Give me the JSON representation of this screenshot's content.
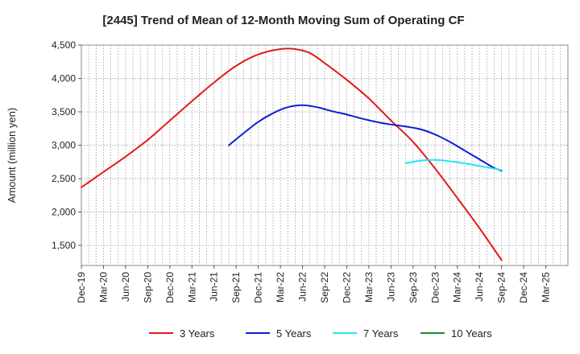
{
  "chart_data": {
    "type": "line",
    "title": "[2445]  Trend of Mean of 12-Month Moving Sum of Operating CF",
    "xlabel": "",
    "ylabel": "Amount (million yen)",
    "ylim": [
      1200,
      4500
    ],
    "yticks": [
      1500,
      2000,
      2500,
      3000,
      3500,
      4000,
      4500
    ],
    "ytick_labels": [
      "1,500",
      "2,000",
      "2,500",
      "3,000",
      "3,500",
      "4,000",
      "4,500"
    ],
    "x_range": [
      0,
      66
    ],
    "x_ticks": [
      {
        "label": "Dec-19",
        "x": 0
      },
      {
        "label": "Mar-20",
        "x": 3
      },
      {
        "label": "Jun-20",
        "x": 6
      },
      {
        "label": "Sep-20",
        "x": 9
      },
      {
        "label": "Dec-20",
        "x": 12
      },
      {
        "label": "Mar-21",
        "x": 15
      },
      {
        "label": "Jun-21",
        "x": 18
      },
      {
        "label": "Sep-21",
        "x": 21
      },
      {
        "label": "Dec-21",
        "x": 24
      },
      {
        "label": "Mar-22",
        "x": 27
      },
      {
        "label": "Jun-22",
        "x": 30
      },
      {
        "label": "Sep-22",
        "x": 33
      },
      {
        "label": "Dec-22",
        "x": 36
      },
      {
        "label": "Mar-23",
        "x": 39
      },
      {
        "label": "Jun-23",
        "x": 42
      },
      {
        "label": "Sep-23",
        "x": 45
      },
      {
        "label": "Dec-23",
        "x": 48
      },
      {
        "label": "Mar-24",
        "x": 51
      },
      {
        "label": "Jun-24",
        "x": 54
      },
      {
        "label": "Sep-24",
        "x": 57
      },
      {
        "label": "Dec-24",
        "x": 60
      },
      {
        "label": "Mar-25",
        "x": 63
      }
    ],
    "grid": true,
    "legend_position": "bottom",
    "series": [
      {
        "name": "3 Years",
        "color": "#e31a1c",
        "points": [
          [
            0,
            2370
          ],
          [
            3,
            2600
          ],
          [
            6,
            2830
          ],
          [
            9,
            3080
          ],
          [
            12,
            3370
          ],
          [
            15,
            3660
          ],
          [
            18,
            3940
          ],
          [
            21,
            4190
          ],
          [
            24,
            4360
          ],
          [
            27,
            4440
          ],
          [
            29,
            4440
          ],
          [
            31,
            4380
          ],
          [
            33,
            4230
          ],
          [
            36,
            3980
          ],
          [
            39,
            3700
          ],
          [
            42,
            3370
          ],
          [
            45,
            3050
          ],
          [
            48,
            2650
          ],
          [
            51,
            2210
          ],
          [
            54,
            1760
          ],
          [
            57,
            1280
          ]
        ]
      },
      {
        "name": "5 Years",
        "color": "#0a1fd1",
        "points": [
          [
            20,
            3000
          ],
          [
            22,
            3180
          ],
          [
            24,
            3350
          ],
          [
            26,
            3480
          ],
          [
            28,
            3570
          ],
          [
            30,
            3600
          ],
          [
            32,
            3570
          ],
          [
            34,
            3510
          ],
          [
            36,
            3460
          ],
          [
            38,
            3400
          ],
          [
            40,
            3350
          ],
          [
            42,
            3310
          ],
          [
            44,
            3280
          ],
          [
            46,
            3240
          ],
          [
            48,
            3160
          ],
          [
            50,
            3050
          ],
          [
            52,
            2920
          ],
          [
            54,
            2790
          ],
          [
            56,
            2660
          ],
          [
            57,
            2620
          ]
        ]
      },
      {
        "name": "7 Years",
        "color": "#22e6f2",
        "points": [
          [
            44,
            2730
          ],
          [
            46,
            2770
          ],
          [
            48,
            2780
          ],
          [
            50,
            2760
          ],
          [
            52,
            2730
          ],
          [
            54,
            2690
          ],
          [
            56,
            2650
          ],
          [
            57,
            2630
          ]
        ]
      },
      {
        "name": "10 Years",
        "color": "#1e8c1e",
        "points": []
      }
    ]
  }
}
